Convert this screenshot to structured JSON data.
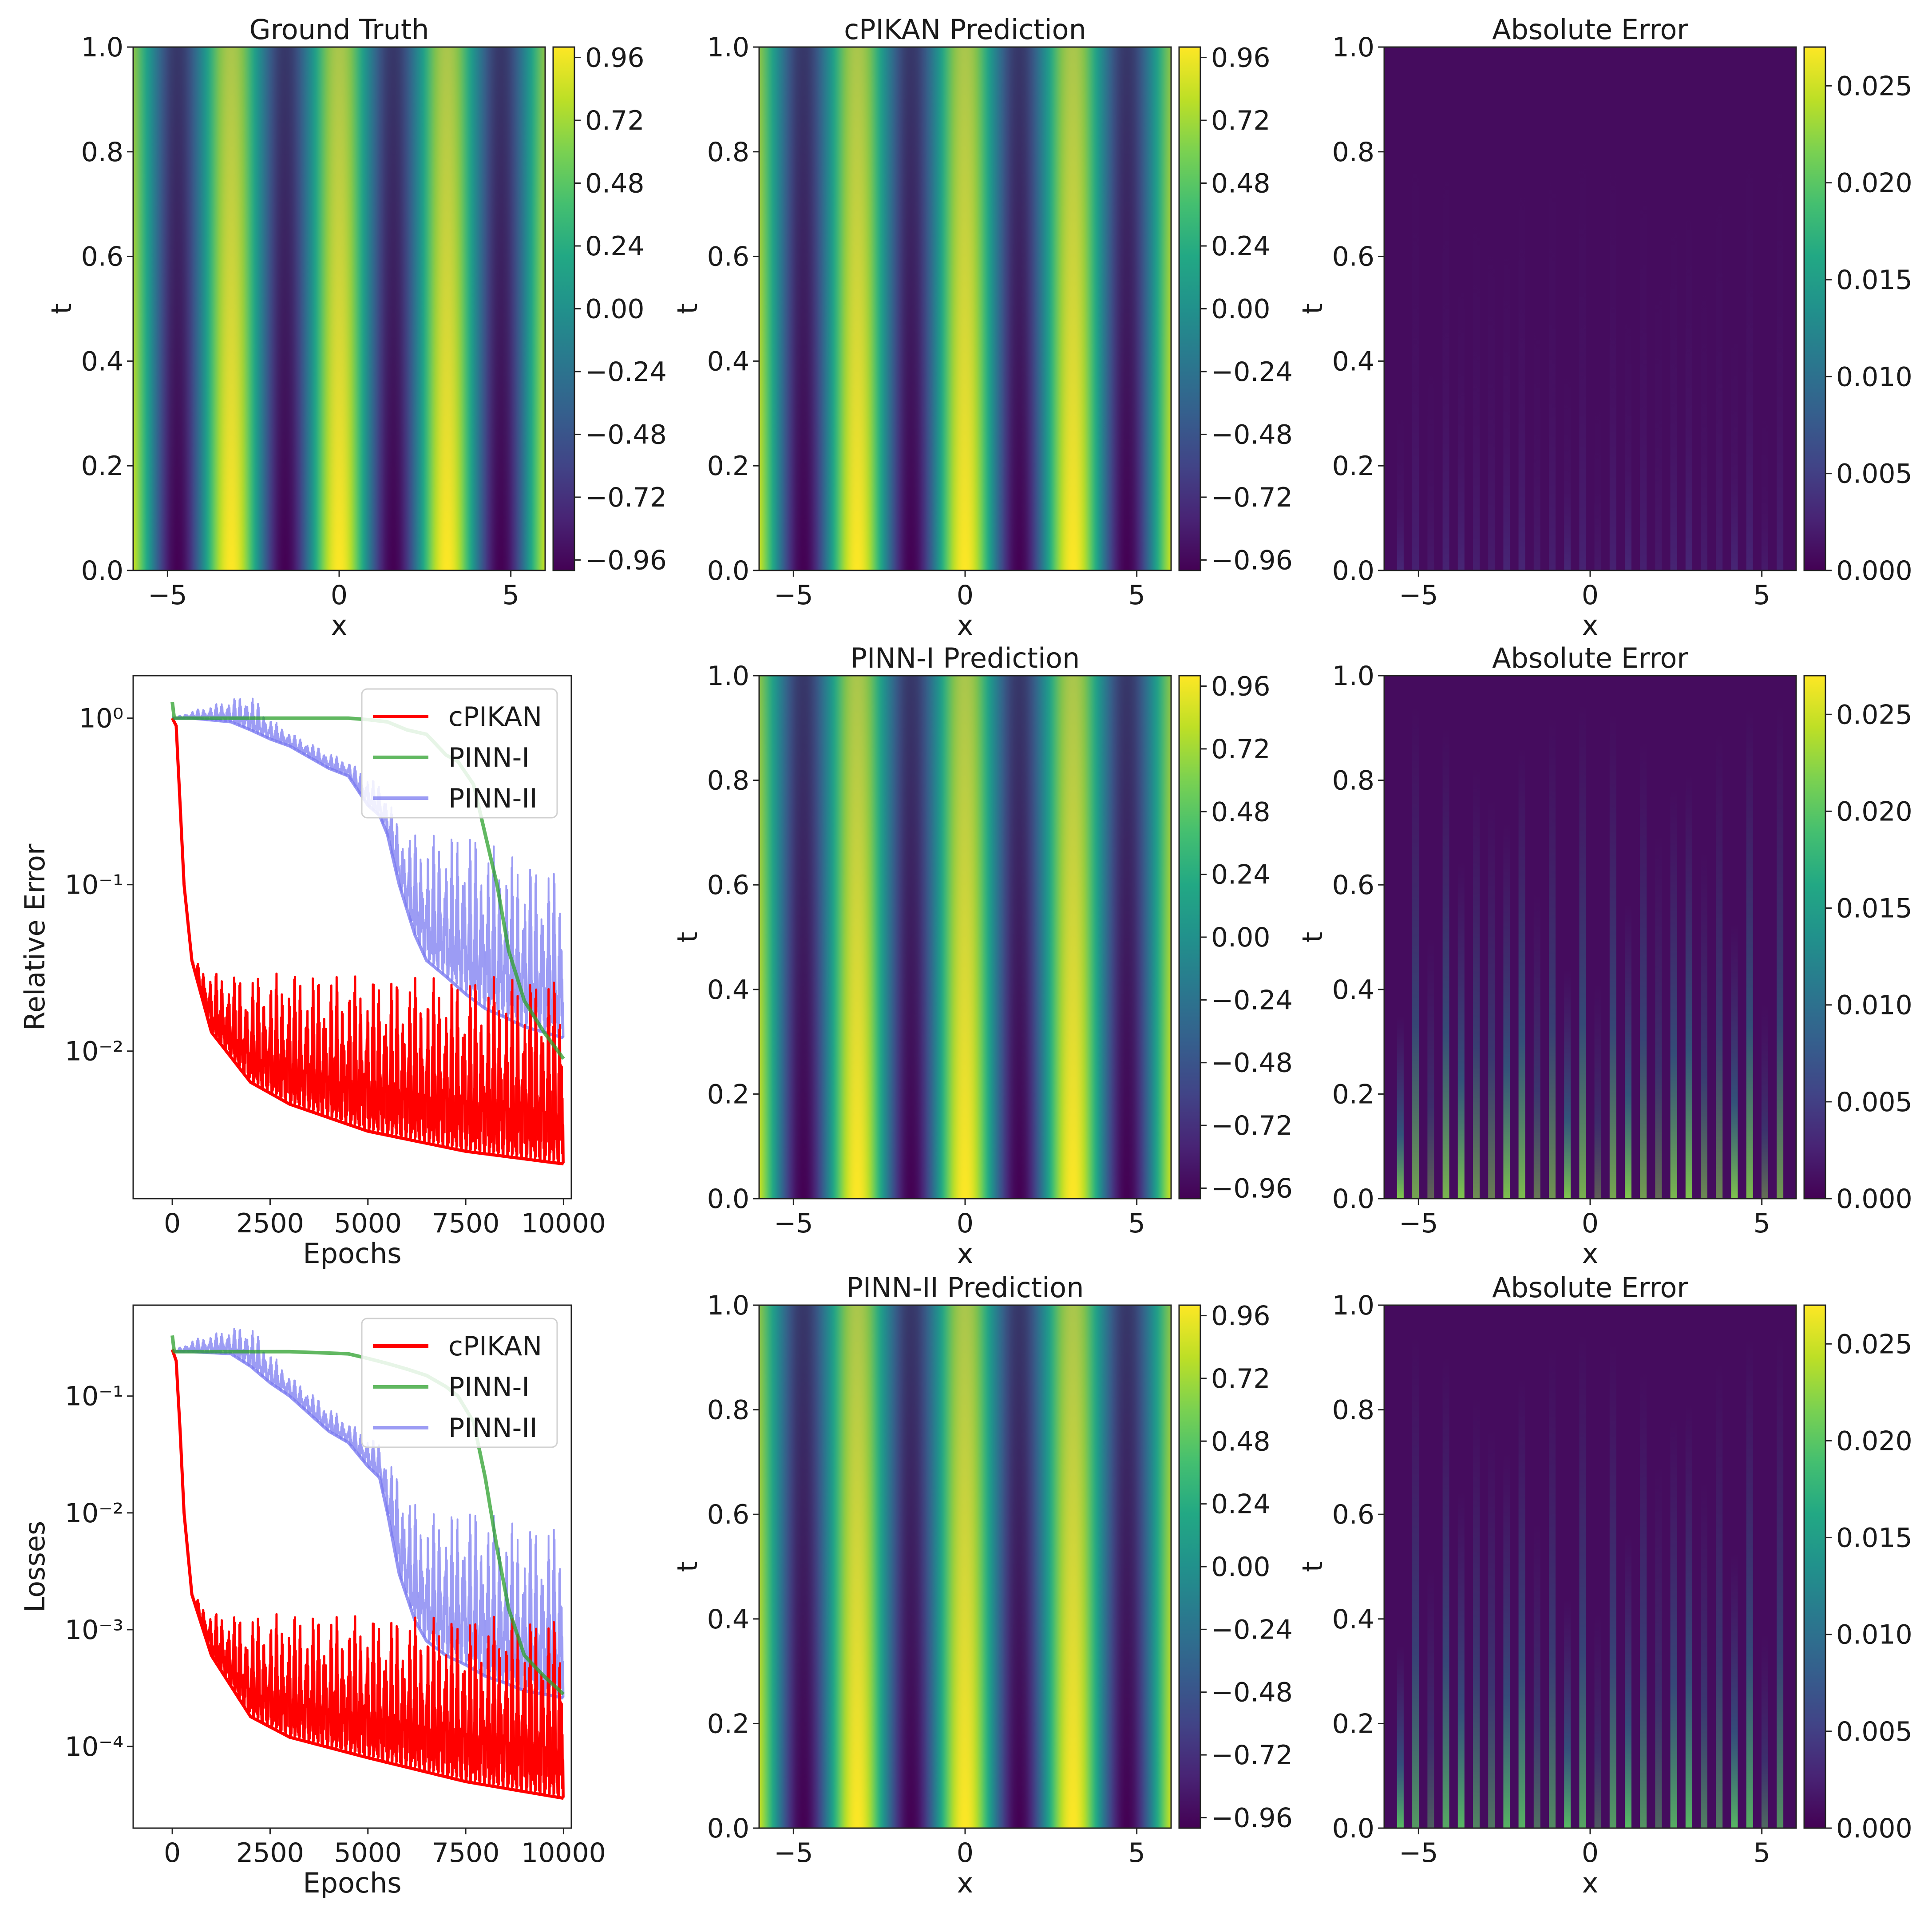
{
  "colors": {
    "viridis": [
      "#440154",
      "#482475",
      "#414487",
      "#355f8d",
      "#2a788e",
      "#21918c",
      "#22a884",
      "#44bf70",
      "#7ad151",
      "#bddf26",
      "#fde725"
    ],
    "cpikan": "#ff0000",
    "pinn_i": "#2ca02c",
    "pinn_ii": "#7b7bf0",
    "background": "#ffffff"
  },
  "chart_data": [
    {
      "id": "ground-truth",
      "type": "heatmap",
      "title": "Ground Truth",
      "xlabel": "x",
      "ylabel": "t",
      "xlim": [
        -6.0,
        6.0
      ],
      "ylim": [
        0.0,
        1.0
      ],
      "xticks": [
        -5,
        0,
        5
      ],
      "xtick_labels": [
        "−5",
        "0",
        "5"
      ],
      "yticks": [
        0.0,
        0.2,
        0.4,
        0.6,
        0.8,
        1.0
      ],
      "ytick_labels": [
        "0.0",
        "0.2",
        "0.4",
        "0.6",
        "0.8",
        "1.0"
      ],
      "field": "u(x,t) = cos(2x)·amplitude decaying slowly in t",
      "clim": [
        -1.0,
        1.0
      ],
      "colorbar_ticks": [
        0.96,
        0.72,
        0.48,
        0.24,
        0.0,
        -0.24,
        -0.48,
        -0.72,
        -0.96
      ],
      "colorbar_labels": [
        "0.96",
        "0.72",
        "0.48",
        "0.24",
        "0.00",
        "−0.24",
        "−0.48",
        "−0.72",
        "−0.96"
      ]
    },
    {
      "id": "cpikan-prediction",
      "type": "heatmap",
      "title": "cPIKAN Prediction",
      "xlabel": "x",
      "ylabel": "t",
      "xlim": [
        -6.0,
        6.0
      ],
      "ylim": [
        0.0,
        1.0
      ],
      "xticks": [
        -5,
        0,
        5
      ],
      "xtick_labels": [
        "−5",
        "0",
        "5"
      ],
      "yticks": [
        0.0,
        0.2,
        0.4,
        0.6,
        0.8,
        1.0
      ],
      "ytick_labels": [
        "0.0",
        "0.2",
        "0.4",
        "0.6",
        "0.8",
        "1.0"
      ],
      "clim": [
        -1.0,
        1.0
      ],
      "colorbar_ticks": [
        0.96,
        0.72,
        0.48,
        0.24,
        0.0,
        -0.24,
        -0.48,
        -0.72,
        -0.96
      ],
      "colorbar_labels": [
        "0.96",
        "0.72",
        "0.48",
        "0.24",
        "0.00",
        "−0.24",
        "−0.48",
        "−0.72",
        "−0.96"
      ]
    },
    {
      "id": "cpikan-error",
      "type": "heatmap",
      "title": "Absolute Error",
      "xlabel": "x",
      "ylabel": "t",
      "xlim": [
        -6.0,
        6.0
      ],
      "ylim": [
        0.0,
        1.0
      ],
      "xticks": [
        -5,
        0,
        5
      ],
      "xtick_labels": [
        "−5",
        "0",
        "5"
      ],
      "yticks": [
        0.0,
        0.2,
        0.4,
        0.6,
        0.8,
        1.0
      ],
      "ytick_labels": [
        "0.0",
        "0.2",
        "0.4",
        "0.6",
        "0.8",
        "1.0"
      ],
      "clim": [
        0.0,
        0.027
      ],
      "error_level": 0.003,
      "colorbar_ticks": [
        0.025,
        0.02,
        0.015,
        0.01,
        0.005,
        0.0
      ],
      "colorbar_labels": [
        "0.025",
        "0.020",
        "0.015",
        "0.010",
        "0.005",
        "0.000"
      ]
    },
    {
      "id": "relative-error-curves",
      "type": "line",
      "yscale": "log",
      "xlabel": "Epochs",
      "ylabel": "Relative Error",
      "xlim": [
        -1000,
        10200
      ],
      "ylim": [
        0.0013,
        1.8
      ],
      "xticks": [
        0,
        2500,
        5000,
        7500,
        10000
      ],
      "xtick_labels": [
        "0",
        "2500",
        "5000",
        "7500",
        "10000"
      ],
      "yticks": [
        1,
        0.1,
        0.01
      ],
      "ytick_labels": [
        "10⁰",
        "10⁻¹",
        "10⁻²"
      ],
      "legend_position": "top-right",
      "series": [
        {
          "name": "cPIKAN",
          "epochs": [
            0,
            100,
            200,
            300,
            500,
            1000,
            2000,
            3000,
            5000,
            7500,
            10000
          ],
          "lower": [
            1.0,
            0.9,
            0.3,
            0.1,
            0.035,
            0.013,
            0.0065,
            0.0048,
            0.0033,
            0.0025,
            0.0021
          ],
          "upper": [
            1.0,
            0.9,
            0.3,
            0.1,
            0.035,
            0.03,
            0.028,
            0.03,
            0.028,
            0.028,
            0.028
          ]
        },
        {
          "name": "PINN-I",
          "epochs": [
            0,
            50,
            200,
            1000,
            3000,
            4500,
            5000,
            5500,
            6000,
            6500,
            7000,
            7300,
            7700,
            8000,
            8300,
            8600,
            9000,
            9500,
            10000
          ],
          "values": [
            1.25,
            1.0,
            1.0,
            1.0,
            1.0,
            1.0,
            0.98,
            0.95,
            0.85,
            0.8,
            0.6,
            0.55,
            0.4,
            0.2,
            0.1,
            0.04,
            0.02,
            0.013,
            0.009
          ]
        },
        {
          "name": "PINN-II",
          "epochs": [
            0,
            500,
            1500,
            2000,
            2500,
            3000,
            4000,
            4500,
            5000,
            5300,
            5500,
            5800,
            6200,
            6500,
            7000,
            7500,
            8000,
            8500,
            9000,
            9500,
            10000
          ],
          "lower": [
            1.0,
            1.0,
            0.95,
            0.85,
            0.75,
            0.68,
            0.5,
            0.45,
            0.3,
            0.26,
            0.2,
            0.1,
            0.05,
            0.035,
            0.028,
            0.022,
            0.018,
            0.016,
            0.014,
            0.013,
            0.012
          ],
          "upper": [
            1.0,
            1.1,
            1.3,
            1.4,
            1.0,
            0.82,
            0.62,
            0.55,
            0.45,
            0.4,
            0.35,
            0.22,
            0.2,
            0.2,
            0.2,
            0.22,
            0.18,
            0.16,
            0.14,
            0.13,
            0.12
          ]
        }
      ]
    },
    {
      "id": "pinn-i-prediction",
      "type": "heatmap",
      "title": "PINN-I Prediction",
      "xlabel": "x",
      "ylabel": "t",
      "xlim": [
        -6.0,
        6.0
      ],
      "ylim": [
        0.0,
        1.0
      ],
      "xticks": [
        -5,
        0,
        5
      ],
      "xtick_labels": [
        "−5",
        "0",
        "5"
      ],
      "yticks": [
        0.0,
        0.2,
        0.4,
        0.6,
        0.8,
        1.0
      ],
      "ytick_labels": [
        "0.0",
        "0.2",
        "0.4",
        "0.6",
        "0.8",
        "1.0"
      ],
      "clim": [
        -1.0,
        1.0
      ],
      "colorbar_ticks": [
        0.96,
        0.72,
        0.48,
        0.24,
        0.0,
        -0.24,
        -0.48,
        -0.72,
        -0.96
      ],
      "colorbar_labels": [
        "0.96",
        "0.72",
        "0.48",
        "0.24",
        "0.00",
        "−0.24",
        "−0.48",
        "−0.72",
        "−0.96"
      ]
    },
    {
      "id": "pinn-i-error",
      "type": "heatmap",
      "title": "Absolute Error",
      "xlabel": "x",
      "ylabel": "t",
      "xlim": [
        -6.0,
        6.0
      ],
      "ylim": [
        0.0,
        1.0
      ],
      "xticks": [
        -5,
        0,
        5
      ],
      "xtick_labels": [
        "−5",
        "0",
        "5"
      ],
      "yticks": [
        0.0,
        0.2,
        0.4,
        0.6,
        0.8,
        1.0
      ],
      "ytick_labels": [
        "0.0",
        "0.2",
        "0.4",
        "0.6",
        "0.8",
        "1.0"
      ],
      "clim": [
        0.0,
        0.027
      ],
      "error_level": 0.022,
      "colorbar_ticks": [
        0.025,
        0.02,
        0.015,
        0.01,
        0.005,
        0.0
      ],
      "colorbar_labels": [
        "0.025",
        "0.020",
        "0.015",
        "0.010",
        "0.005",
        "0.000"
      ]
    },
    {
      "id": "loss-curves",
      "type": "line",
      "yscale": "log",
      "xlabel": "Epochs",
      "ylabel": "Losses",
      "xlim": [
        -1000,
        10200
      ],
      "ylim": [
        2e-05,
        0.6
      ],
      "xticks": [
        0,
        2500,
        5000,
        7500,
        10000
      ],
      "xtick_labels": [
        "0",
        "2500",
        "5000",
        "7500",
        "10000"
      ],
      "yticks": [
        0.1,
        0.01,
        0.001,
        0.0001
      ],
      "ytick_labels": [
        "10⁻¹",
        "10⁻²",
        "10⁻³",
        "10⁻⁴"
      ],
      "legend_position": "top-right",
      "series": [
        {
          "name": "cPIKAN",
          "epochs": [
            0,
            100,
            200,
            300,
            500,
            1000,
            2000,
            3000,
            5000,
            7500,
            10000
          ],
          "lower": [
            0.25,
            0.2,
            0.05,
            0.01,
            0.002,
            0.0006,
            0.00018,
            0.00012,
            8e-05,
            5e-05,
            3.6e-05
          ],
          "upper": [
            0.25,
            0.2,
            0.05,
            0.01,
            0.002,
            0.0014,
            0.0013,
            0.0014,
            0.0013,
            0.0013,
            0.0013
          ]
        },
        {
          "name": "PINN-I",
          "epochs": [
            0,
            50,
            200,
            1000,
            3000,
            4500,
            5000,
            5500,
            6000,
            6500,
            7000,
            7300,
            7700,
            8000,
            8300,
            8600,
            9000,
            9500,
            10000
          ],
          "values": [
            0.33,
            0.24,
            0.24,
            0.24,
            0.24,
            0.23,
            0.21,
            0.19,
            0.17,
            0.15,
            0.12,
            0.1,
            0.06,
            0.02,
            0.005,
            0.0015,
            0.0006,
            0.0004,
            0.00028
          ]
        },
        {
          "name": "PINN-II",
          "epochs": [
            0,
            500,
            1500,
            2000,
            2500,
            3000,
            4000,
            4500,
            5000,
            5300,
            5500,
            5800,
            6200,
            6500,
            7000,
            7500,
            8000,
            8500,
            9000,
            9500,
            10000
          ],
          "lower": [
            0.24,
            0.24,
            0.23,
            0.18,
            0.13,
            0.1,
            0.05,
            0.04,
            0.025,
            0.02,
            0.01,
            0.003,
            0.0012,
            0.0008,
            0.0006,
            0.0005,
            0.0004,
            0.00035,
            0.0003,
            0.00028,
            0.00026
          ],
          "upper": [
            0.24,
            0.3,
            0.38,
            0.4,
            0.24,
            0.15,
            0.08,
            0.06,
            0.045,
            0.04,
            0.03,
            0.02,
            0.012,
            0.01,
            0.01,
            0.012,
            0.01,
            0.009,
            0.008,
            0.008,
            0.008
          ]
        }
      ]
    },
    {
      "id": "pinn-ii-prediction",
      "type": "heatmap",
      "title": "PINN-II Prediction",
      "xlabel": "x",
      "ylabel": "t",
      "xlim": [
        -6.0,
        6.0
      ],
      "ylim": [
        0.0,
        1.0
      ],
      "xticks": [
        -5,
        0,
        5
      ],
      "xtick_labels": [
        "−5",
        "0",
        "5"
      ],
      "yticks": [
        0.0,
        0.2,
        0.4,
        0.6,
        0.8,
        1.0
      ],
      "ytick_labels": [
        "0.0",
        "0.2",
        "0.4",
        "0.6",
        "0.8",
        "1.0"
      ],
      "clim": [
        -1.0,
        1.0
      ],
      "colorbar_ticks": [
        0.96,
        0.72,
        0.48,
        0.24,
        0.0,
        -0.24,
        -0.48,
        -0.72,
        -0.96
      ],
      "colorbar_labels": [
        "0.96",
        "0.72",
        "0.48",
        "0.24",
        "0.00",
        "−0.24",
        "−0.48",
        "−0.72",
        "−0.96"
      ]
    },
    {
      "id": "pinn-ii-error",
      "type": "heatmap",
      "title": "Absolute Error",
      "xlabel": "x",
      "ylabel": "t",
      "xlim": [
        -6.0,
        6.0
      ],
      "ylim": [
        0.0,
        1.0
      ],
      "xticks": [
        -5,
        0,
        5
      ],
      "xtick_labels": [
        "−5",
        "0",
        "5"
      ],
      "yticks": [
        0.0,
        0.2,
        0.4,
        0.6,
        0.8,
        1.0
      ],
      "ytick_labels": [
        "0.0",
        "0.2",
        "0.4",
        "0.6",
        "0.8",
        "1.0"
      ],
      "clim": [
        0.0,
        0.027
      ],
      "error_level": 0.02,
      "colorbar_ticks": [
        0.025,
        0.02,
        0.015,
        0.01,
        0.005,
        0.0
      ],
      "colorbar_labels": [
        "0.025",
        "0.020",
        "0.015",
        "0.010",
        "0.005",
        "0.000"
      ]
    }
  ]
}
